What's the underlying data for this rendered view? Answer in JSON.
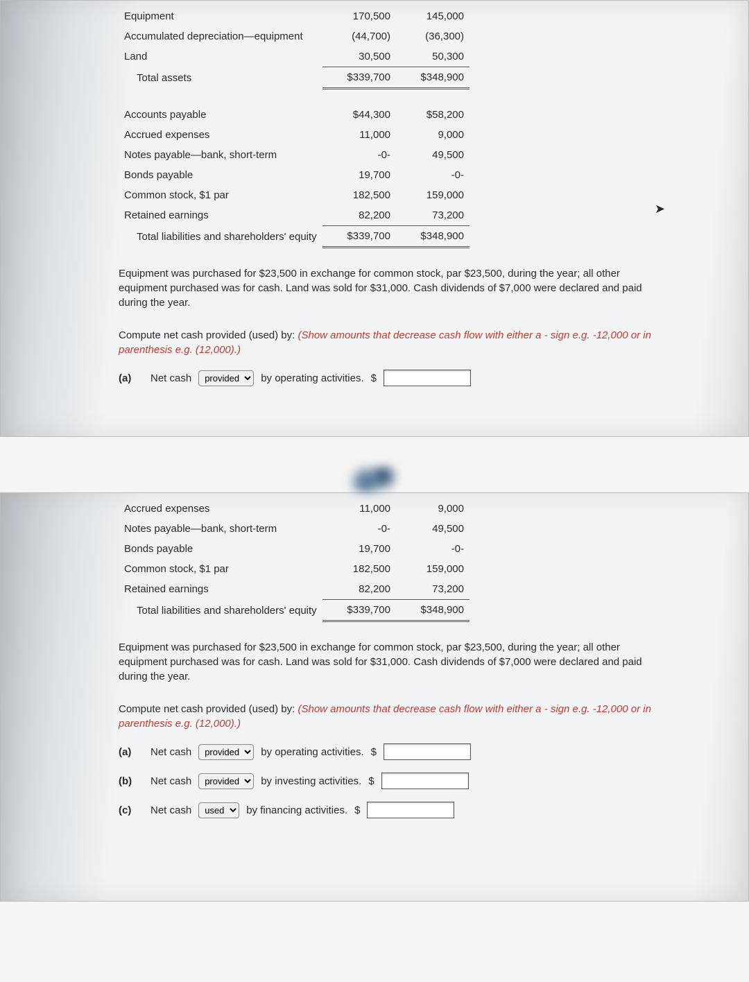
{
  "top": {
    "rows1": [
      {
        "label": "Equipment",
        "c1": "170,500",
        "c2": "145,000"
      },
      {
        "label": "Accumulated depreciation—equipment",
        "c1": "(44,700)",
        "c2": "(36,300)"
      },
      {
        "label": "Land",
        "c1": "30,500",
        "c2": "50,300"
      }
    ],
    "total1": {
      "label": "Total assets",
      "c1": "$339,700",
      "c2": "$348,900"
    },
    "rows2": [
      {
        "label": "Accounts payable",
        "c1": "$44,300",
        "c2": "$58,200"
      },
      {
        "label": "Accrued expenses",
        "c1": "11,000",
        "c2": "9,000"
      },
      {
        "label": "Notes payable—bank, short-term",
        "c1": "-0-",
        "c2": "49,500"
      },
      {
        "label": "Bonds payable",
        "c1": "19,700",
        "c2": "-0-"
      },
      {
        "label": "Common stock, $1 par",
        "c1": "182,500",
        "c2": "159,000"
      },
      {
        "label": "Retained earnings",
        "c1": "82,200",
        "c2": "73,200"
      }
    ],
    "total2": {
      "label": "Total liabilities and shareholders' equity",
      "c1": "$339,700",
      "c2": "$348,900"
    },
    "para1": "Equipment was purchased for $23,500 in exchange for common stock, par $23,500, during the year; all other equipment purchased was for cash. Land was sold for $31,000. Cash dividends of $7,000 were declared and paid during the year.",
    "para2_lead": "Compute net cash provided (used) by: ",
    "para2_red": "(Show amounts that decrease cash flow with either a - sign e.g. -12,000 or in parenthesis e.g. (12,000).)",
    "q": [
      {
        "key": "(a)",
        "pre": "Net cash",
        "sel": "provided",
        "post": "by operating activities.",
        "dollar": "$"
      }
    ]
  },
  "bottom": {
    "rows": [
      {
        "label": "Accrued expenses",
        "c1": "11,000",
        "c2": "9,000"
      },
      {
        "label": "Notes payable—bank, short-term",
        "c1": "-0-",
        "c2": "49,500"
      },
      {
        "label": "Bonds payable",
        "c1": "19,700",
        "c2": "-0-"
      },
      {
        "label": "Common stock, $1 par",
        "c1": "182,500",
        "c2": "159,000"
      },
      {
        "label": "Retained earnings",
        "c1": "82,200",
        "c2": "73,200"
      }
    ],
    "total": {
      "label": "Total liabilities and shareholders' equity",
      "c1": "$339,700",
      "c2": "$348,900"
    },
    "para1": "Equipment was purchased for $23,500 in exchange for common stock, par $23,500, during the year; all other equipment purchased was for cash. Land was sold for $31,000. Cash dividends of $7,000 were declared and paid during the year.",
    "para2_lead": "Compute net cash provided (used) by: ",
    "para2_red": "(Show amounts that decrease cash flow with either a - sign e.g. -12,000 or in parenthesis e.g. (12,000).)",
    "q": [
      {
        "key": "(a)",
        "pre": "Net cash",
        "sel": "provided",
        "post": "by operating activities.",
        "dollar": "$"
      },
      {
        "key": "(b)",
        "pre": "Net cash",
        "sel": "provided",
        "post": "by investing activities.",
        "dollar": "$"
      },
      {
        "key": "(c)",
        "pre": "Net cash",
        "sel": "used",
        "post": "by financing activities.",
        "dollar": "$"
      }
    ]
  },
  "select_options": [
    "provided",
    "used"
  ]
}
